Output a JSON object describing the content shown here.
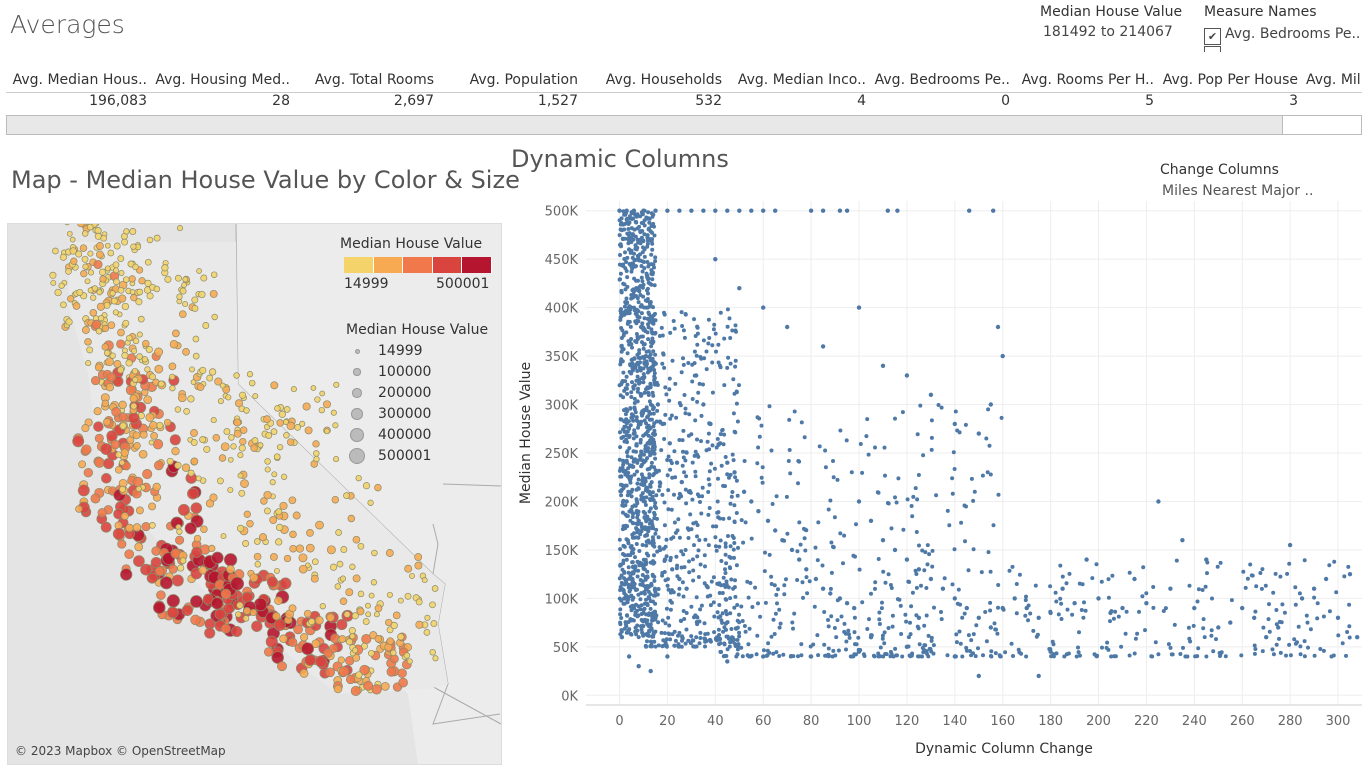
{
  "dashboard": {
    "title": "Averages"
  },
  "filters": {
    "median_filter": {
      "title": "Median House Value",
      "value": "181492 to 214067"
    },
    "measure_names": {
      "title": "Measure Names",
      "item": "Avg. Bedrooms Pe..",
      "checked": true,
      "check_glyph": "✔"
    }
  },
  "averages": {
    "columns": [
      {
        "label": "Avg. Median Hous..",
        "value": "196,083"
      },
      {
        "label": "Avg. Housing Med..",
        "value": "28"
      },
      {
        "label": "Avg. Total Rooms",
        "value": "2,697"
      },
      {
        "label": "Avg. Population",
        "value": "1,527"
      },
      {
        "label": "Avg. Households",
        "value": "532"
      },
      {
        "label": "Avg. Median Inco..",
        "value": "4"
      },
      {
        "label": "Avg. Bedrooms Pe..",
        "value": "0"
      },
      {
        "label": "Avg. Rooms Per H..",
        "value": "5"
      },
      {
        "label": "Avg. Pop Per House",
        "value": "3"
      },
      {
        "label": "Avg. Mil",
        "value": ""
      }
    ]
  },
  "map": {
    "title": "Map - Median House Value by Color & Size",
    "credit": "© 2023 Mapbox © OpenStreetMap",
    "color_legend": {
      "title": "Median House Value",
      "min": "14999",
      "max": "500001",
      "colors": [
        "#f3d36a",
        "#f7aa52",
        "#f0784a",
        "#d9443f",
        "#b5152f"
      ]
    },
    "size_legend": {
      "title": "Median House Value",
      "items": [
        "14999",
        "100000",
        "200000",
        "300000",
        "400000",
        "500001"
      ]
    }
  },
  "scatter": {
    "title": "Dynamic Columns",
    "change_columns": {
      "title": "Change Columns",
      "value": "Miles Nearest Major .."
    }
  },
  "chart_data": {
    "type": "scatter",
    "title": "Dynamic Columns",
    "xlabel": "Dynamic Column Change",
    "ylabel": "Median House Value",
    "xlim": [
      -14,
      310
    ],
    "ylim": [
      -10000,
      510000
    ],
    "xticks": [
      0,
      20,
      40,
      60,
      80,
      100,
      120,
      140,
      160,
      180,
      200,
      220,
      240,
      260,
      280,
      300
    ],
    "yticks": [
      0,
      50000,
      100000,
      150000,
      200000,
      250000,
      300000,
      350000,
      400000,
      450000,
      500000
    ],
    "ytick_labels": [
      "0K",
      "50K",
      "100K",
      "150K",
      "200K",
      "250K",
      "300K",
      "350K",
      "400K",
      "450K",
      "500K"
    ],
    "grid": true,
    "color": "#4e79a7",
    "series": [
      {
        "points": [
          [
            0,
            500000
          ],
          [
            3,
            500000
          ],
          [
            6,
            500000
          ],
          [
            10,
            500000
          ],
          [
            15,
            500000
          ],
          [
            20,
            500000
          ],
          [
            25,
            500000
          ],
          [
            30,
            500000
          ],
          [
            35,
            500000
          ],
          [
            40,
            500000
          ],
          [
            45,
            500000
          ],
          [
            50,
            500000
          ],
          [
            55,
            500000
          ],
          [
            60,
            500000
          ],
          [
            65,
            500000
          ],
          [
            80,
            500000
          ],
          [
            85,
            500000
          ],
          [
            92,
            500000
          ],
          [
            95,
            500000
          ],
          [
            112,
            500000
          ],
          [
            116,
            500000
          ],
          [
            146,
            500000
          ],
          [
            156,
            500000
          ],
          [
            1,
            480000
          ],
          [
            4,
            460000
          ],
          [
            7,
            420000
          ],
          [
            9,
            380000
          ],
          [
            11,
            350000
          ],
          [
            13,
            320000
          ],
          [
            16,
            300000
          ],
          [
            18,
            280000
          ],
          [
            21,
            260000
          ],
          [
            24,
            240000
          ],
          [
            26,
            220000
          ],
          [
            29,
            210000
          ],
          [
            3,
            200000
          ],
          [
            5,
            190000
          ],
          [
            8,
            180000
          ],
          [
            12,
            170000
          ],
          [
            14,
            160000
          ],
          [
            17,
            150000
          ],
          [
            19,
            140000
          ],
          [
            22,
            130000
          ],
          [
            25,
            120000
          ],
          [
            28,
            110000
          ],
          [
            2,
            100000
          ],
          [
            6,
            90000
          ],
          [
            10,
            85000
          ],
          [
            15,
            80000
          ],
          [
            32,
            330000
          ],
          [
            35,
            300000
          ],
          [
            38,
            280000
          ],
          [
            42,
            260000
          ],
          [
            45,
            240000
          ],
          [
            48,
            230000
          ],
          [
            52,
            210000
          ],
          [
            55,
            200000
          ],
          [
            58,
            190000
          ],
          [
            62,
            180000
          ],
          [
            65,
            170000
          ],
          [
            68,
            160000
          ],
          [
            72,
            150000
          ],
          [
            75,
            140000
          ],
          [
            78,
            130000
          ],
          [
            82,
            120000
          ],
          [
            85,
            110000
          ],
          [
            88,
            105000
          ],
          [
            92,
            100000
          ],
          [
            95,
            95000
          ],
          [
            98,
            90000
          ],
          [
            40,
            450000
          ],
          [
            50,
            420000
          ],
          [
            60,
            400000
          ],
          [
            70,
            380000
          ],
          [
            85,
            360000
          ],
          [
            100,
            400000
          ],
          [
            110,
            340000
          ],
          [
            120,
            330000
          ],
          [
            130,
            310000
          ],
          [
            140,
            280000
          ],
          [
            150,
            270000
          ],
          [
            158,
            380000
          ],
          [
            160,
            350000
          ],
          [
            155,
            300000
          ],
          [
            100,
            200000
          ],
          [
            105,
            180000
          ],
          [
            110,
            160000
          ],
          [
            115,
            150000
          ],
          [
            120,
            140000
          ],
          [
            125,
            130000
          ],
          [
            130,
            120000
          ],
          [
            135,
            110000
          ],
          [
            140,
            100000
          ],
          [
            145,
            90000
          ],
          [
            150,
            80000
          ],
          [
            155,
            70000
          ],
          [
            160,
            90000
          ],
          [
            125,
            80000
          ],
          [
            105,
            60000
          ],
          [
            165,
            100000
          ],
          [
            170,
            90000
          ],
          [
            175,
            80000
          ],
          [
            180,
            85000
          ],
          [
            185,
            110000
          ],
          [
            190,
            95000
          ],
          [
            195,
            140000
          ],
          [
            200,
            100000
          ],
          [
            205,
            85000
          ],
          [
            210,
            90000
          ],
          [
            215,
            120000
          ],
          [
            220,
            95000
          ],
          [
            225,
            200000
          ],
          [
            230,
            110000
          ],
          [
            235,
            160000
          ],
          [
            240,
            90000
          ],
          [
            245,
            140000
          ],
          [
            250,
            70000
          ],
          [
            255,
            75000
          ],
          [
            260,
            90000
          ],
          [
            265,
            80000
          ],
          [
            270,
            60000
          ],
          [
            275,
            70000
          ],
          [
            280,
            155000
          ],
          [
            285,
            100000
          ],
          [
            290,
            110000
          ],
          [
            295,
            120000
          ],
          [
            300,
            80000
          ],
          [
            305,
            125000
          ],
          [
            308,
            60000
          ],
          [
            1,
            60000
          ],
          [
            4,
            40000
          ],
          [
            8,
            30000
          ],
          [
            13,
            25000
          ],
          [
            20,
            40000
          ],
          [
            45,
            35000
          ],
          [
            60,
            40000
          ],
          [
            80,
            40000
          ],
          [
            100,
            45000
          ],
          [
            120,
            50000
          ],
          [
            140,
            40000
          ],
          [
            150,
            20000
          ],
          [
            175,
            20000
          ],
          [
            180,
            45000
          ]
        ]
      }
    ]
  }
}
